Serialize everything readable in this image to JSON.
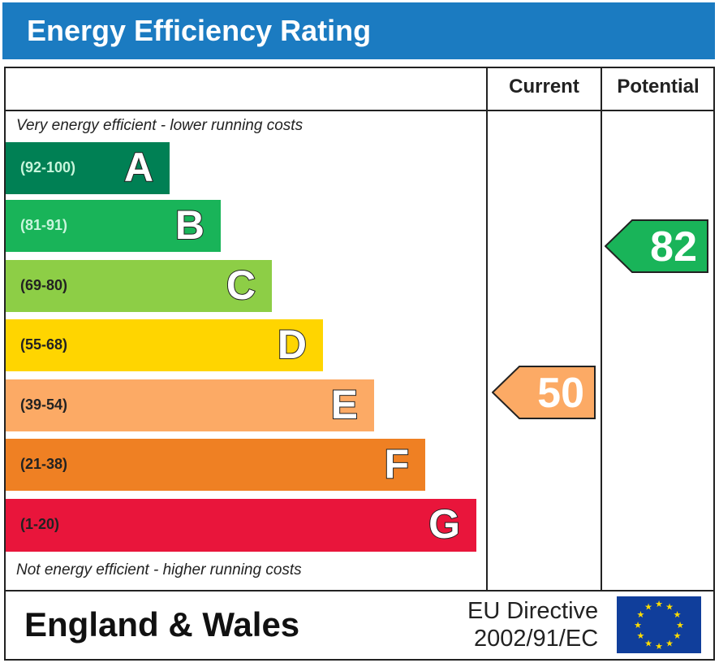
{
  "title": "Energy Efficiency Rating",
  "chart_data": {
    "type": "bar",
    "columns": [
      "Current",
      "Potential"
    ],
    "top_note": "Very energy efficient - lower running costs",
    "bottom_note": "Not energy efficient - higher running costs",
    "bands": [
      {
        "letter": "A",
        "range": "(92-100)",
        "color": "#008054",
        "text_color": "#c8f5dc"
      },
      {
        "letter": "B",
        "range": "(81-91)",
        "color": "#19b459",
        "text_color": "#c8f5dc"
      },
      {
        "letter": "C",
        "range": "(69-80)",
        "color": "#8dce46",
        "text_color": "#222222"
      },
      {
        "letter": "D",
        "range": "(55-68)",
        "color": "#ffd500",
        "text_color": "#222222"
      },
      {
        "letter": "E",
        "range": "(39-54)",
        "color": "#fcaa65",
        "text_color": "#222222"
      },
      {
        "letter": "F",
        "range": "(21-38)",
        "color": "#ef8023",
        "text_color": "#222222"
      },
      {
        "letter": "G",
        "range": "(1-20)",
        "color": "#e9153b",
        "text_color": "#222222"
      }
    ],
    "current": {
      "value": "50",
      "band": "E",
      "color": "#fcaa65"
    },
    "potential": {
      "value": "82",
      "band": "B",
      "color": "#19b459"
    }
  },
  "footer": {
    "region": "England & Wales",
    "directive_line1": "EU Directive",
    "directive_line2": "2002/91/EC"
  }
}
